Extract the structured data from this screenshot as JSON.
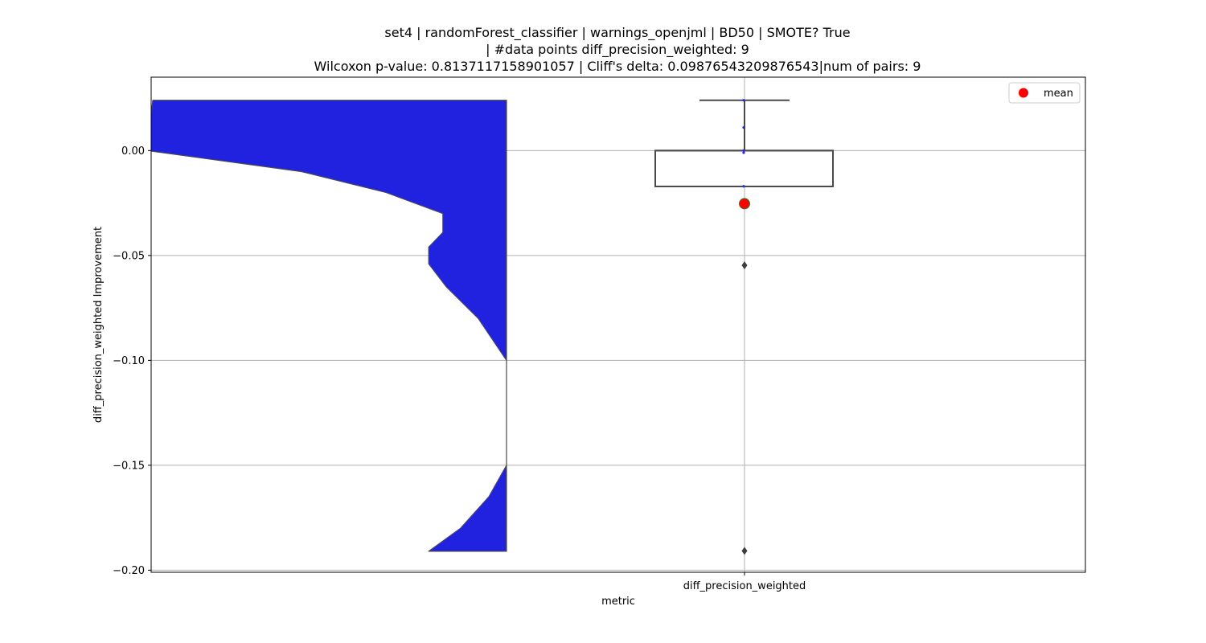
{
  "chart_data": {
    "type": "violin+box",
    "title_lines": [
      "set4 | randomForest_classifier | warnings_openjml | BD50 | SMOTE? True",
      "| #data points diff_precision_weighted: 9",
      "Wilcoxon p-value: 0.8137117158901057 | Cliff's delta: 0.09876543209876543|num of pairs: 9"
    ],
    "xlabel": "metric",
    "ylabel": "diff_precision_weighted Improvement",
    "category": "diff_precision_weighted",
    "ylim": [
      -0.201,
      0.035
    ],
    "yticks": [
      0.0,
      -0.05,
      -0.1,
      -0.15,
      -0.2
    ],
    "ytick_labels": [
      "0.00",
      "−0.05",
      "−0.10",
      "−0.15",
      "−0.20"
    ],
    "grid": true,
    "legend": {
      "position": "top-right",
      "entries": [
        {
          "label": "mean",
          "color": "#ff0000",
          "marker": "circle"
        }
      ]
    },
    "colors": {
      "violin": "#2121e0",
      "violin_edge": "#4a4a4a",
      "box_edge": "#4a4a4a",
      "mean": "#ff0000",
      "mean_edge": "#2e7d32",
      "grid": "#b0b0b0"
    },
    "violin": {
      "density_profile": [
        {
          "y": 0.024,
          "density": 1.0
        },
        {
          "y": 0.0,
          "density": 1.02
        },
        {
          "y": -0.01,
          "density": 0.58
        },
        {
          "y": -0.02,
          "density": 0.34
        },
        {
          "y": -0.03,
          "density": 0.18
        },
        {
          "y": -0.039,
          "density": 0.18
        },
        {
          "y": -0.046,
          "density": 0.22
        },
        {
          "y": -0.054,
          "density": 0.22
        },
        {
          "y": -0.065,
          "density": 0.17
        },
        {
          "y": -0.08,
          "density": 0.08
        },
        {
          "y": -0.1,
          "density": 0.0
        },
        {
          "y": -0.15,
          "density": 0.0
        },
        {
          "y": -0.165,
          "density": 0.05
        },
        {
          "y": -0.18,
          "density": 0.13
        },
        {
          "y": -0.191,
          "density": 0.22
        }
      ]
    },
    "box": {
      "q1": -0.0171,
      "median": 0.0,
      "q3": 0.0,
      "whisker_low": -0.0171,
      "whisker_high": 0.024,
      "outliers": [
        -0.0547,
        -0.1908
      ],
      "mean": -0.0253
    },
    "points": [
      0.024,
      0.011,
      0.0,
      -0.001,
      -0.017
    ]
  }
}
